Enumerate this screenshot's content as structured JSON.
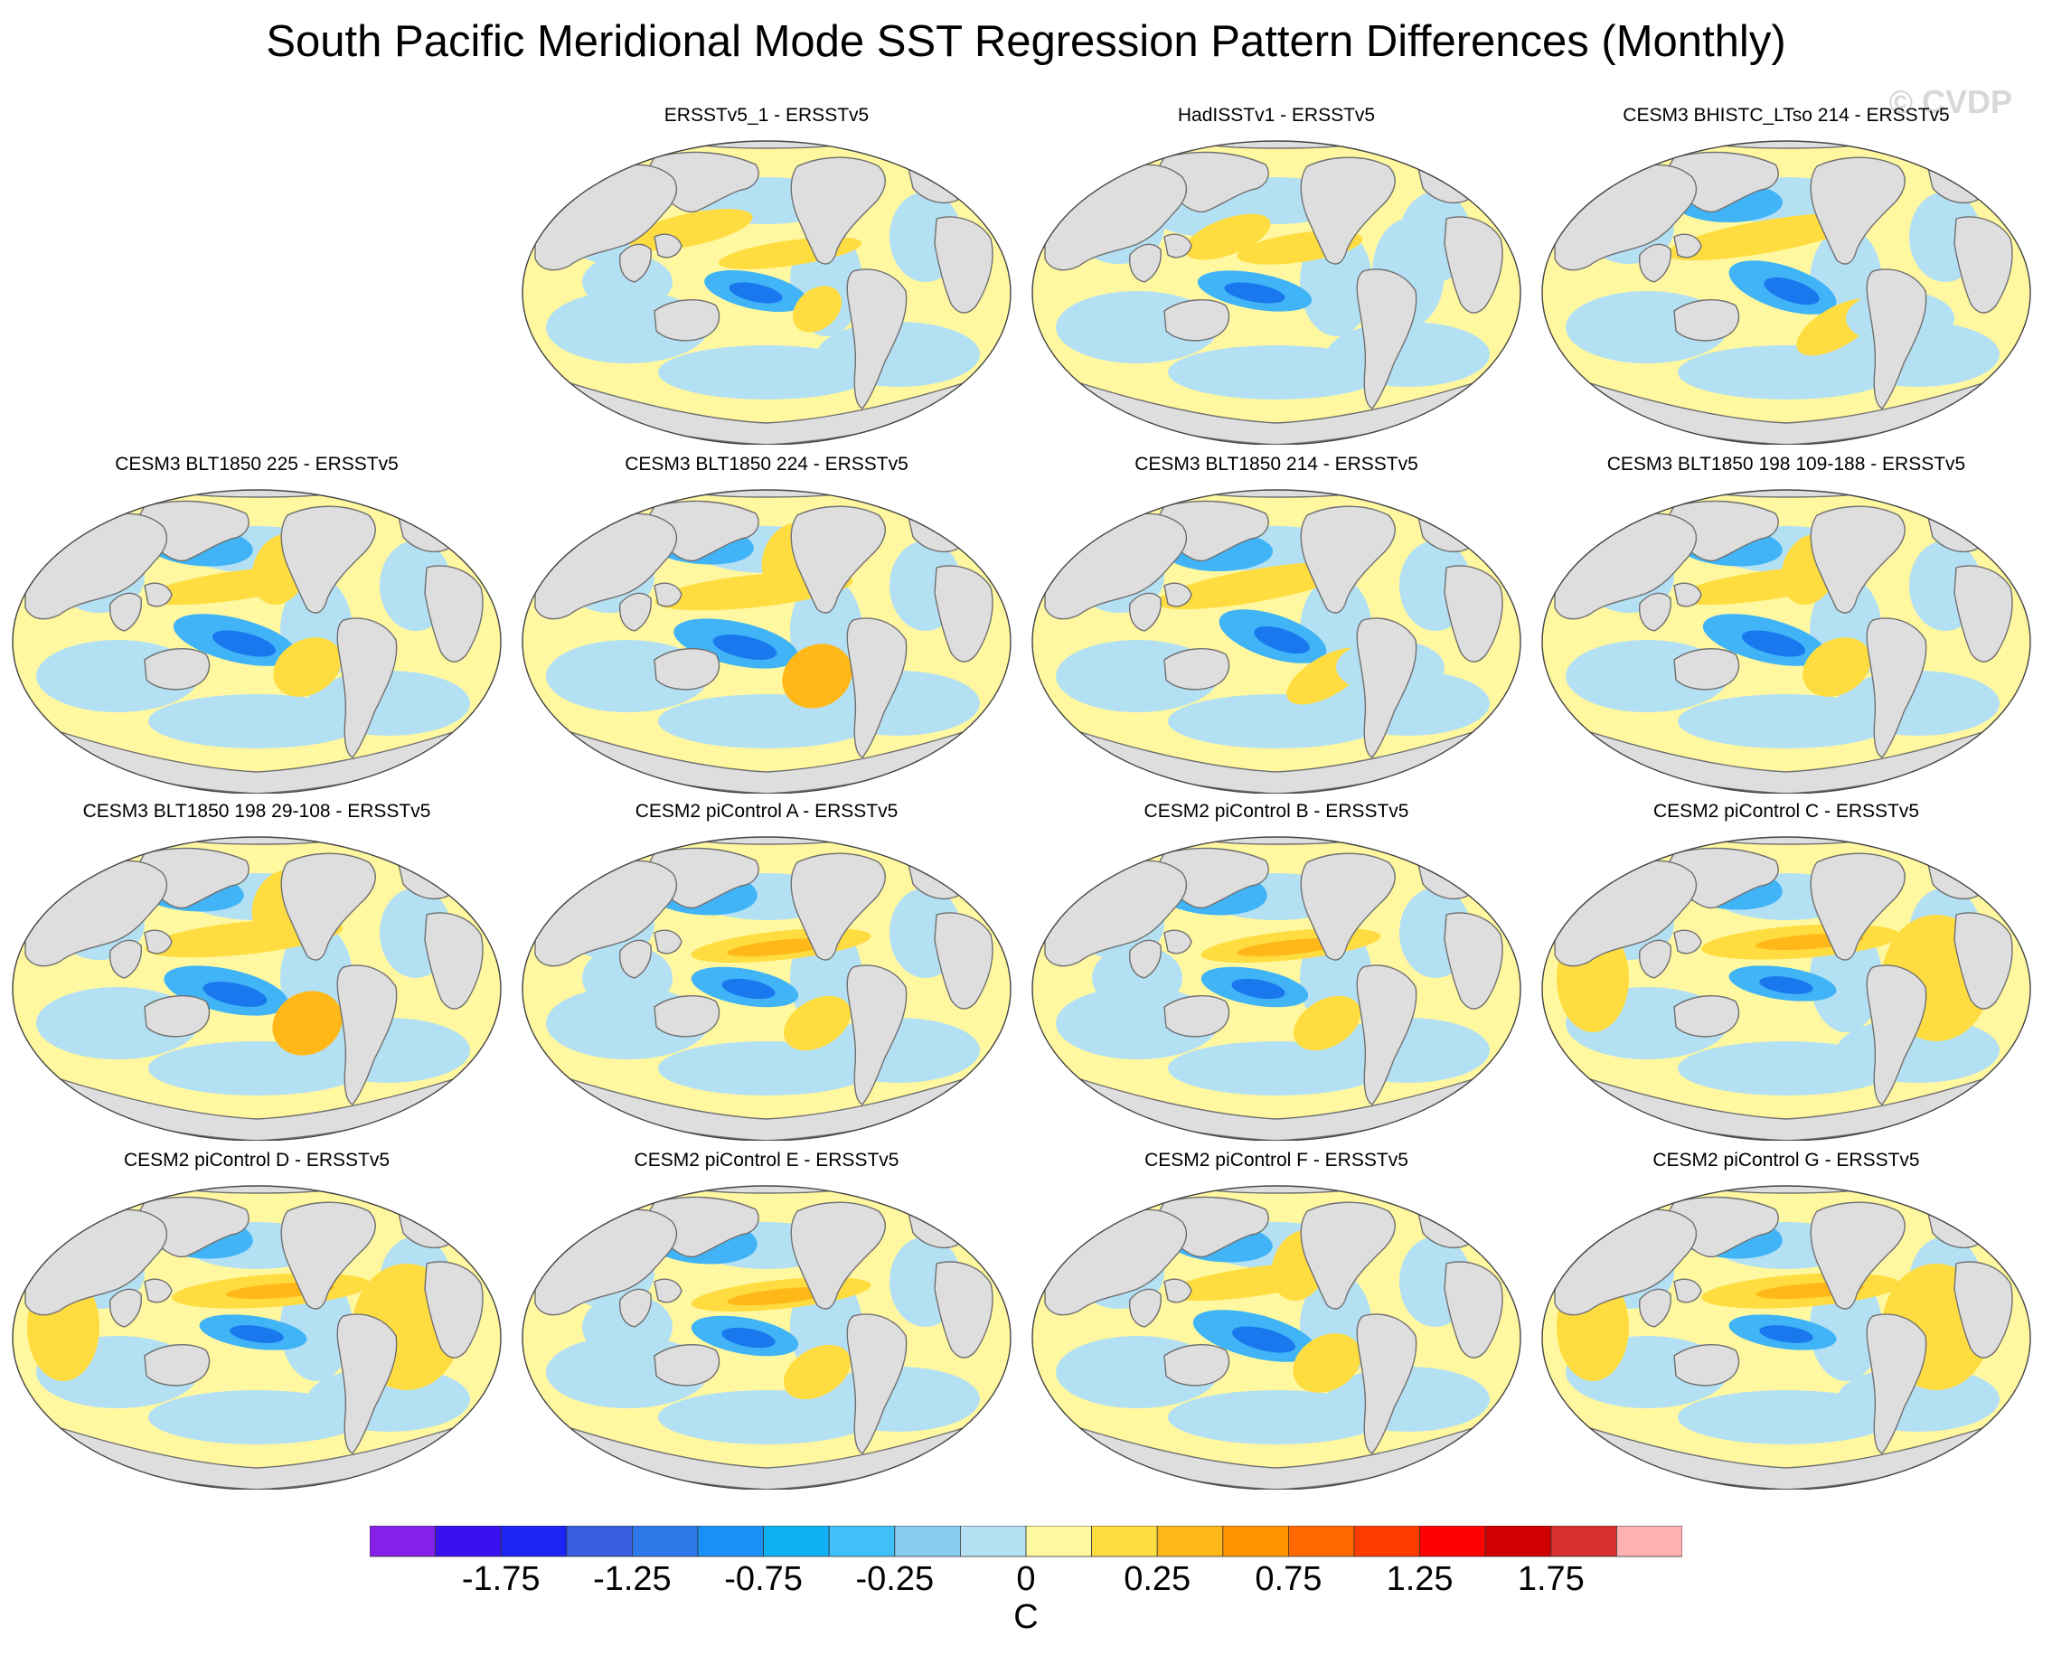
{
  "title": "South Pacific Meridional Mode SST Regression Pattern Differences (Monthly)",
  "watermark": "© CVDP",
  "panels": [
    {
      "title": "ERSSTv5_1 - ERSSTv5",
      "row": 0,
      "col": 1,
      "variant": 0
    },
    {
      "title": "HadISSTv1 - ERSSTv5",
      "row": 0,
      "col": 2,
      "variant": 1
    },
    {
      "title": "CESM3 BHISTC_LTso 214 - ERSSTv5",
      "row": 0,
      "col": 3,
      "variant": 2
    },
    {
      "title": "CESM3 BLT1850 225 - ERSSTv5",
      "row": 1,
      "col": 0,
      "variant": 3
    },
    {
      "title": "CESM3 BLT1850 224 - ERSSTv5",
      "row": 1,
      "col": 1,
      "variant": 4
    },
    {
      "title": "CESM3 BLT1850 214 - ERSSTv5",
      "row": 1,
      "col": 2,
      "variant": 2
    },
    {
      "title": "CESM3 BLT1850 198 109-188 - ERSSTv5",
      "row": 1,
      "col": 3,
      "variant": 3
    },
    {
      "title": "CESM3 BLT1850 198 29-108 - ERSSTv5",
      "row": 2,
      "col": 0,
      "variant": 4
    },
    {
      "title": "CESM2 piControl A - ERSSTv5",
      "row": 2,
      "col": 1,
      "variant": 5
    },
    {
      "title": "CESM2 piControl B - ERSSTv5",
      "row": 2,
      "col": 2,
      "variant": 5
    },
    {
      "title": "CESM2 piControl C - ERSSTv5",
      "row": 2,
      "col": 3,
      "variant": 6
    },
    {
      "title": "CESM2 piControl D - ERSSTv5",
      "row": 3,
      "col": 0,
      "variant": 6
    },
    {
      "title": "CESM2 piControl E - ERSSTv5",
      "row": 3,
      "col": 1,
      "variant": 5
    },
    {
      "title": "CESM2 piControl F - ERSSTv5",
      "row": 3,
      "col": 2,
      "variant": 3
    },
    {
      "title": "CESM2 piControl G - ERSSTv5",
      "row": 3,
      "col": 3,
      "variant": 6
    }
  ],
  "colorbar": {
    "colors": [
      "#8420e8",
      "#3a10f0",
      "#1a24f4",
      "#3a5ee0",
      "#2c78e8",
      "#1a90f4",
      "#10b0f4",
      "#40c0f8",
      "#88ccf0",
      "#b4e0f4",
      "#fff8a0",
      "#ffdc40",
      "#ffb818",
      "#ff9400",
      "#ff6a00",
      "#ff3c00",
      "#ff0000",
      "#d00000",
      "#d83030",
      "#ffb0b0"
    ],
    "labels": [
      "-1.75",
      "-1.25",
      "-0.75",
      "-0.25",
      "0",
      "0.25",
      "0.75",
      "1.25",
      "1.75"
    ],
    "units": "C"
  },
  "map_colors": {
    "land": "#dedede",
    "coast": "#707070",
    "deep_blue": "#1a78ee",
    "blue": "#40b4f6",
    "light_blue": "#b4e0f4",
    "pale_yellow": "#fff8a0",
    "yellow": "#ffdc40",
    "orange": "#ffb818"
  }
}
